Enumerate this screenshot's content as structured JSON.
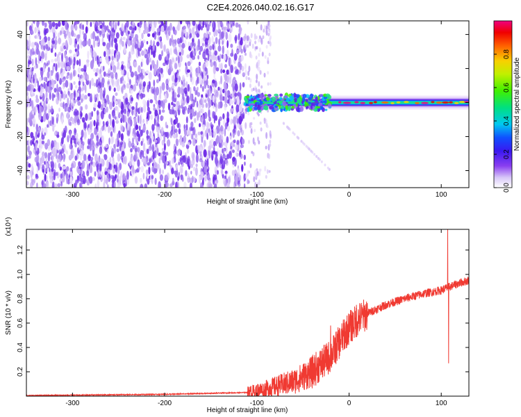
{
  "title": "C2E4.2026.040.02.16.G17",
  "chart_data": [
    {
      "type": "heatmap",
      "name": "spectrogram",
      "xlabel": "Height of straight line (km)",
      "ylabel": "Frequency (Hz)",
      "xlim": [
        -350,
        130
      ],
      "ylim": [
        -50,
        48
      ],
      "xticks": [
        -300,
        -200,
        -100,
        0,
        100
      ],
      "yticks": [
        -40,
        -20,
        0,
        20,
        40
      ],
      "noise_region_x": [
        -350,
        -85
      ],
      "signal_start_x": -113,
      "colorbar": {
        "label": "Normalized spectral amplitude",
        "range": [
          0,
          1
        ],
        "ticks": [
          0.0,
          0.2,
          0.4,
          0.6,
          0.8
        ]
      }
    },
    {
      "type": "line",
      "name": "snr",
      "xlabel": "Height of straight line (km)",
      "ylabel": "SNR (10 * v/v)",
      "ylabel_multiplier": "(x10⁴)",
      "xlim": [
        -350,
        130
      ],
      "ylim": [
        0,
        1.37
      ],
      "xticks": [
        -300,
        -200,
        -100,
        0,
        100
      ],
      "yticks": [
        0.2,
        0.4,
        0.6,
        0.8,
        1.0,
        1.2
      ],
      "color": "#f03a32",
      "trend": {
        "x": [
          -350,
          -300,
          -200,
          -110,
          -90,
          -60,
          -40,
          -20,
          -10,
          0,
          10,
          20,
          40,
          60,
          80,
          100,
          106,
          110,
          120,
          130
        ],
        "y": [
          0.005,
          0.008,
          0.015,
          0.03,
          0.06,
          0.12,
          0.2,
          0.33,
          0.45,
          0.56,
          0.63,
          0.68,
          0.75,
          0.8,
          0.84,
          0.87,
          0.89,
          0.9,
          0.93,
          0.95
        ]
      },
      "spikes": [
        {
          "x": 8,
          "y": 0.75
        },
        {
          "x": -5,
          "y": 0.63
        },
        {
          "x": -20,
          "y": 0.58
        },
        {
          "x": 107,
          "y": 1.37
        },
        {
          "x": 108,
          "y": 0.27
        }
      ]
    }
  ]
}
